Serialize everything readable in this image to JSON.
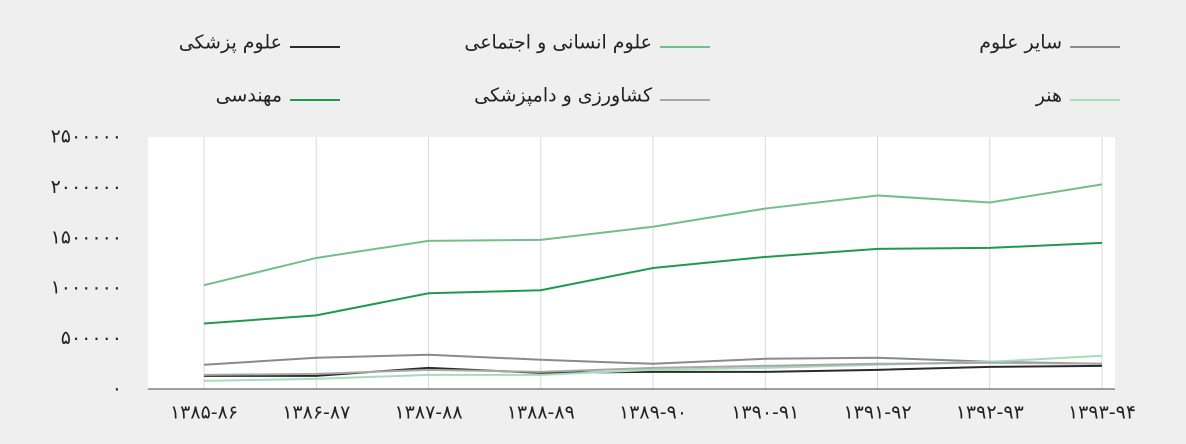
{
  "chart_data": {
    "type": "line",
    "categories": [
      "۱۳۸۵-۸۶",
      "۱۳۸۶-۸۷",
      "۱۳۸۷-۸۸",
      "۱۳۸۸-۸۹",
      "۱۳۸۹-۹۰",
      "۱۳۹۰-۹۱",
      "۱۳۹۱-۹۲",
      "۱۳۹۲-۹۳",
      "۱۳۹۳-۹۴"
    ],
    "series": [
      {
        "name": "سایر علوم",
        "color": "#8a8a8a",
        "values": [
          240000,
          310000,
          340000,
          290000,
          250000,
          300000,
          310000,
          270000,
          250000
        ]
      },
      {
        "name": "علوم انسانی و اجتماعی",
        "color": "#72bf8c",
        "values": [
          1030000,
          1300000,
          1470000,
          1480000,
          1610000,
          1790000,
          1920000,
          1850000,
          2030000
        ]
      },
      {
        "name": "علوم پزشکی",
        "color": "#2b2b2b",
        "values": [
          130000,
          130000,
          210000,
          160000,
          170000,
          170000,
          190000,
          220000,
          230000
        ]
      },
      {
        "name": "هنر",
        "color": "#a6dcb8",
        "values": [
          80000,
          100000,
          140000,
          140000,
          190000,
          210000,
          240000,
          270000,
          330000
        ]
      },
      {
        "name": "کشاورزی و دامپزشکی",
        "color": "#a8a8a8",
        "values": [
          140000,
          150000,
          190000,
          170000,
          210000,
          230000,
          250000,
          260000,
          250000
        ]
      },
      {
        "name": "مهندسی",
        "color": "#1f9a4c",
        "values": [
          650000,
          730000,
          950000,
          980000,
          1200000,
          1310000,
          1390000,
          1400000,
          1450000
        ]
      }
    ],
    "ylim": [
      0,
      2500000
    ],
    "yticks": [
      {
        "value": 0,
        "label": "۰"
      },
      {
        "value": 500000,
        "label": "۵۰۰۰۰۰"
      },
      {
        "value": 1000000,
        "label": "۱۰۰۰۰۰۰"
      },
      {
        "value": 1500000,
        "label": "۱۵۰۰۰۰۰"
      },
      {
        "value": 2000000,
        "label": "۲۰۰۰۰۰۰"
      },
      {
        "value": 2500000,
        "label": "۲۵۰۰۰۰۰"
      }
    ],
    "grid": true
  }
}
